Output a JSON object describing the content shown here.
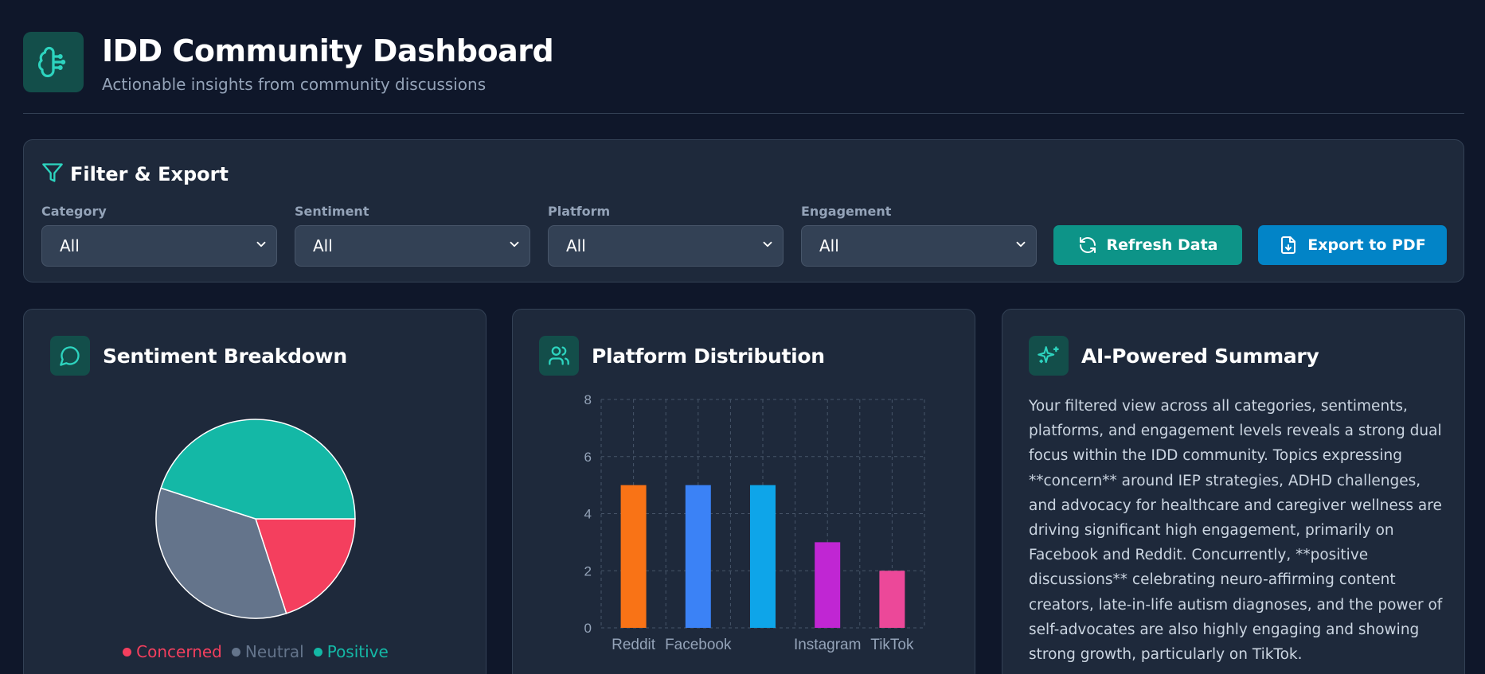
{
  "header": {
    "title": "IDD Community Dashboard",
    "subtitle": "Actionable insights from community discussions",
    "logo_icon": "brain-icon"
  },
  "filters": {
    "title": "Filter & Export",
    "icon": "filter-icon",
    "fields": [
      {
        "label": "Category",
        "value": "All"
      },
      {
        "label": "Sentiment",
        "value": "All"
      },
      {
        "label": "Platform",
        "value": "All"
      },
      {
        "label": "Engagement",
        "value": "All"
      }
    ],
    "refresh_label": "Refresh Data",
    "export_label": "Export to PDF"
  },
  "sentiment": {
    "title": "Sentiment Breakdown",
    "icon": "message-circle-icon",
    "legend": [
      "Concerned",
      "Neutral",
      "Positive"
    ]
  },
  "platform": {
    "title": "Platform Distribution",
    "icon": "users-icon"
  },
  "summary": {
    "title": "AI-Powered Summary",
    "icon": "sparkles-icon",
    "text": "Your filtered view across all categories, sentiments, platforms, and engagement levels reveals a strong dual focus within the IDD community. Topics expressing **concern** around IEP strategies, ADHD challenges, and advocacy for healthcare and caregiver wellness are driving significant high engagement, primarily on Facebook and Reddit. Concurrently, **positive discussions** celebrating neuro-affirming content creators, late-in-life autism diagnoses, and the power of self-advocates are also highly engaging and showing strong growth, particularly on TikTok."
  },
  "colors": {
    "concerned": "#f43f5e",
    "neutral": "#64748b",
    "positive": "#14b8a6",
    "accent": "#2dd4bf"
  },
  "chart_data": [
    {
      "type": "pie",
      "labels": [
        "Concerned",
        "Neutral",
        "Positive"
      ],
      "values": [
        20,
        35,
        45
      ],
      "colors": [
        "#f43f5e",
        "#64748b",
        "#14b8a6"
      ],
      "legend": "bottom"
    },
    {
      "type": "bar",
      "categories": [
        "Reddit",
        "Facebook",
        "",
        "Instagram",
        "TikTok"
      ],
      "values": [
        5,
        5,
        5,
        3,
        2
      ],
      "colors": [
        "#f97316",
        "#3b82f6",
        "#0ea5e9",
        "#c026d3",
        "#ec4899"
      ],
      "ylim": [
        0,
        8
      ],
      "yticks": [
        0,
        2,
        4,
        6,
        8
      ],
      "grid": true
    }
  ]
}
